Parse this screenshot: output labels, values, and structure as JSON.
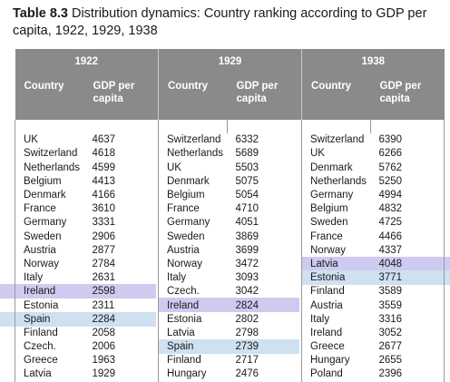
{
  "caption": {
    "label": "Table 8.3",
    "text": "Distribution dynamics: Country ranking according to GDP per capita, 1922, 1929, 1938"
  },
  "years": [
    "1922",
    "1929",
    "1938"
  ],
  "col_headers": {
    "country": "Country",
    "gdp": "GDP per capita"
  },
  "rows": [
    [
      [
        "UK",
        "4637"
      ],
      [
        "Switzerland",
        "6332"
      ],
      [
        "Switzerland",
        "6390"
      ]
    ],
    [
      [
        "Switzerland",
        "4618"
      ],
      [
        "Netherlands",
        "5689"
      ],
      [
        "UK",
        "6266"
      ]
    ],
    [
      [
        "Netherlands",
        "4599"
      ],
      [
        "UK",
        "5503"
      ],
      [
        "Denmark",
        "5762"
      ]
    ],
    [
      [
        "Belgium",
        "4413"
      ],
      [
        "Denmark",
        "5075"
      ],
      [
        "Netherlands",
        "5250"
      ]
    ],
    [
      [
        "Denmark",
        "4166"
      ],
      [
        "Belgium",
        "5054"
      ],
      [
        "Germany",
        "4994"
      ]
    ],
    [
      [
        "France",
        "3610"
      ],
      [
        "France",
        "4710"
      ],
      [
        "Belgium",
        "4832"
      ]
    ],
    [
      [
        "Germany",
        "3331"
      ],
      [
        "Germany",
        "4051"
      ],
      [
        "Sweden",
        "4725"
      ]
    ],
    [
      [
        "Sweden",
        "2906"
      ],
      [
        "Sweden",
        "3869"
      ],
      [
        "France",
        "4466"
      ]
    ],
    [
      [
        "Austria",
        "2877"
      ],
      [
        "Austria",
        "3699"
      ],
      [
        "Norway",
        "4337"
      ]
    ],
    [
      [
        "Norway",
        "2784"
      ],
      [
        "Norway",
        "3472"
      ],
      [
        "Latvia",
        "4048"
      ]
    ],
    [
      [
        "Italy",
        "2631"
      ],
      [
        "Italy",
        "3093"
      ],
      [
        "Estonia",
        "3771"
      ]
    ],
    [
      [
        "Ireland",
        "2598"
      ],
      [
        "Czech.",
        "3042"
      ],
      [
        "Finland",
        "3589"
      ]
    ],
    [
      [
        "Estonia",
        "2311"
      ],
      [
        "Ireland",
        "2824"
      ],
      [
        "Austria",
        "3559"
      ]
    ],
    [
      [
        "Spain",
        "2284"
      ],
      [
        "Estonia",
        "2802"
      ],
      [
        "Italy",
        "3316"
      ]
    ],
    [
      [
        "Finland",
        "2058"
      ],
      [
        "Latvia",
        "2798"
      ],
      [
        "Ireland",
        "3052"
      ]
    ],
    [
      [
        "Czech.",
        "2006"
      ],
      [
        "Spain",
        "2739"
      ],
      [
        "Greece",
        "2677"
      ]
    ],
    [
      [
        "Greece",
        "1963"
      ],
      [
        "Finland",
        "2717"
      ],
      [
        "Hungary",
        "2655"
      ]
    ],
    [
      [
        "Latvia",
        "1929"
      ],
      [
        "Hungary",
        "2476"
      ],
      [
        "Poland",
        "2396"
      ]
    ]
  ],
  "highlight_colors": {
    "estonia": "#cfcaf0",
    "finland": "#cfe0f0",
    "header_bg": "#8a8a8a"
  }
}
